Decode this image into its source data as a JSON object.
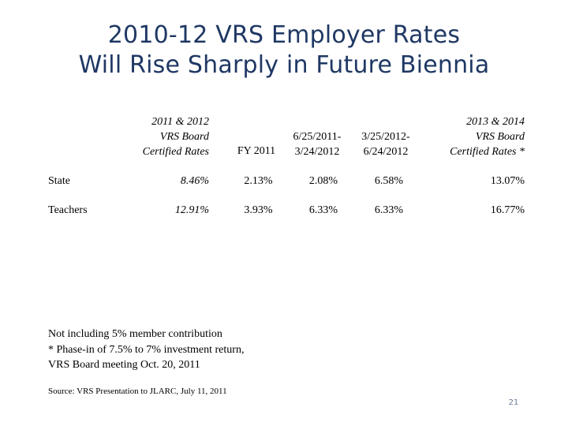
{
  "title": {
    "line1": "2010-12 VRS Employer Rates",
    "line2": "Will Rise Sharply in Future Biennia"
  },
  "table": {
    "headers": [
      [
        "2011 & 2012",
        "VRS  Board",
        "Certified Rates"
      ],
      [
        "FY 2011"
      ],
      [
        "6/25/2011-",
        "3/24/2012"
      ],
      [
        "3/25/2012-",
        "6/24/2012"
      ],
      [
        "2013 & 2014",
        "VRS  Board",
        "Certified Rates *"
      ]
    ],
    "rows": [
      {
        "label": "State",
        "values": [
          "8.46%",
          "2.13%",
          "2.08%",
          "6.58%",
          "13.07%"
        ]
      },
      {
        "label": "Teachers",
        "values": [
          "12.91%",
          "3.93%",
          "6.33%",
          "6.33%",
          "16.77%"
        ]
      }
    ]
  },
  "notes": [
    "Not including 5% member contribution",
    "* Phase-in of 7.5% to 7% investment return,",
    "VRS Board meeting Oct. 20, 2011"
  ],
  "source": "Source: VRS Presentation to JLARC, July 11, 2011",
  "page_number": "21"
}
